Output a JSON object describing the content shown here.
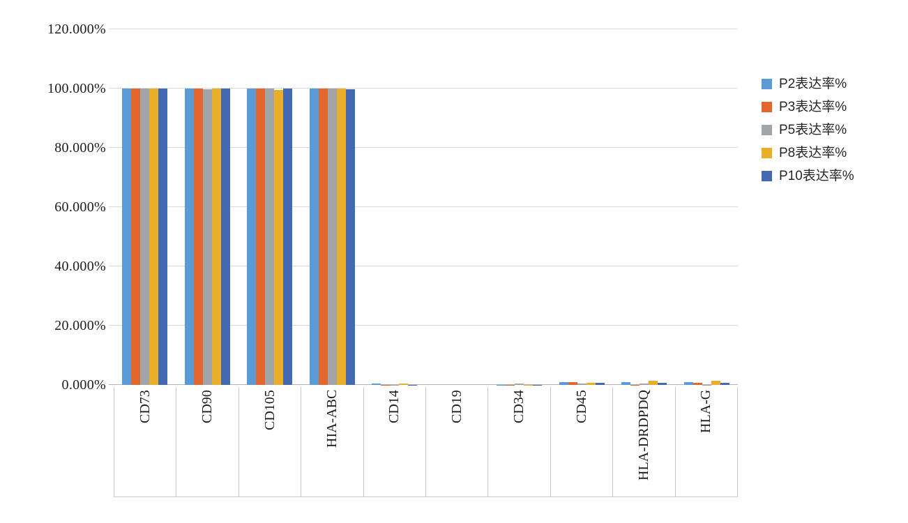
{
  "chart_data": {
    "type": "bar",
    "title": "",
    "categories": [
      "CD73",
      "CD90",
      "CD105",
      "HIA-ABC",
      "CD14",
      "CD19",
      "CD34",
      "CD45",
      "HLA-DRDPDQ",
      "HLA-G"
    ],
    "series": [
      {
        "name": "P2表达率%",
        "color": "#5b9bd5",
        "values": [
          100,
          100,
          100,
          100,
          0.5,
          0,
          0.05,
          0.9,
          1.0,
          1.0
        ]
      },
      {
        "name": "P3表达率%",
        "color": "#e2672f",
        "values": [
          100,
          100,
          100,
          100,
          0.05,
          0,
          0.05,
          0.9,
          0.1,
          0.8
        ]
      },
      {
        "name": "P5表达率%",
        "color": "#a2a5a8",
        "values": [
          100,
          99.8,
          100,
          99.9,
          0.05,
          0,
          0.4,
          0.5,
          0.4,
          0.1
        ]
      },
      {
        "name": "P8表达率%",
        "color": "#eaaf29",
        "values": [
          100,
          100,
          99.5,
          100,
          0.5,
          0,
          0.05,
          0.6,
          1.3,
          1.3
        ]
      },
      {
        "name": "P10表达率%",
        "color": "#4269b2",
        "values": [
          100,
          100,
          99.9,
          99.7,
          0.05,
          0,
          0.05,
          0.6,
          0.7,
          0.8
        ]
      }
    ],
    "y_axis": {
      "min": 0,
      "max": 120,
      "step": 20,
      "tick_labels": [
        "0.000%",
        "20.000%",
        "40.000%",
        "60.000%",
        "80.000%",
        "100.000%",
        "120.000%"
      ]
    },
    "xlabel": "",
    "ylabel": "",
    "legend_position": "right",
    "grid": true
  },
  "colors": {
    "background": "#ffffff",
    "gridline": "#d9d9d9",
    "axis_line": "#b3b3b3",
    "cell_border": "#c9c9c9",
    "tick_text": "#1c1c1c"
  }
}
